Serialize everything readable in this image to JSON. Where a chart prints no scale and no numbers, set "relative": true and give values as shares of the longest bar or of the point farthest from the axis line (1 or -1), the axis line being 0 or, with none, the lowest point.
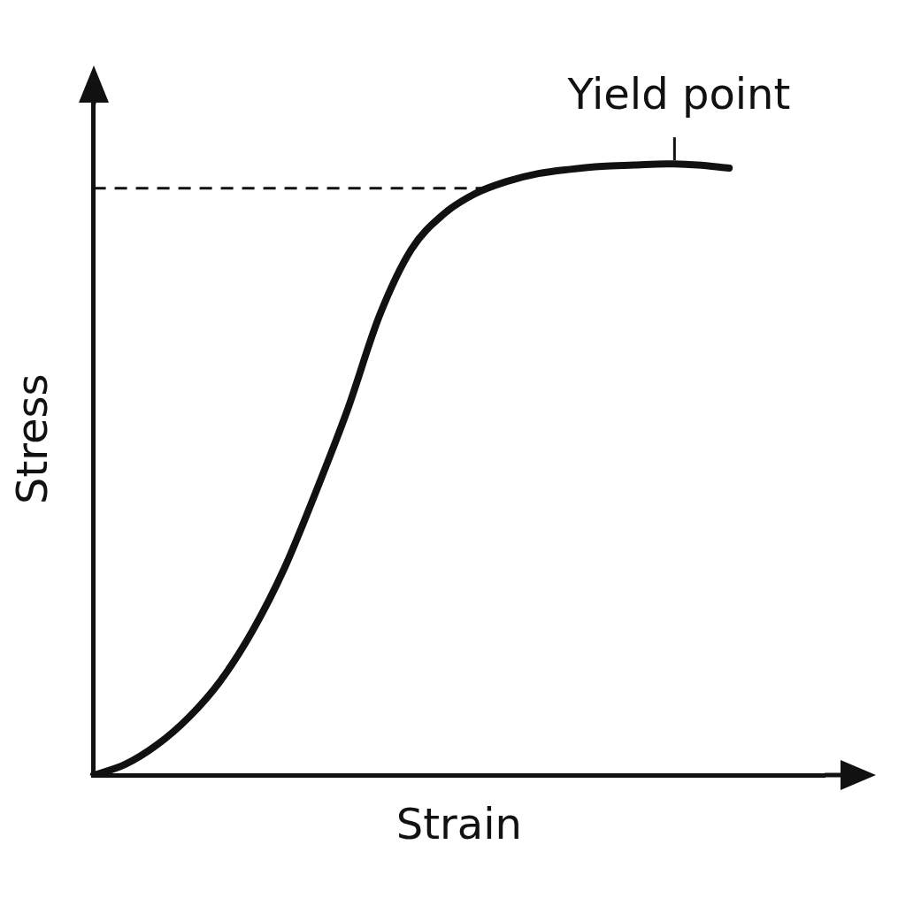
{
  "chart_data": {
    "type": "line",
    "relative": true,
    "xlabel": "Strain",
    "ylabel": "Stress",
    "categories": [
      null,
      null,
      null,
      null,
      null,
      null,
      null,
      null,
      null,
      null,
      null,
      null,
      null,
      null,
      null,
      null,
      null,
      null,
      null,
      null,
      null,
      null,
      null,
      null
    ],
    "series": [
      {
        "color": "#111111",
        "values": [
          0,
          0.018,
          0.05,
          0.095,
          0.155,
          0.236,
          0.338,
          0.464,
          0.599,
          0.752,
          0.86,
          0.917,
          0.951,
          0.971,
          0.984,
          0.991,
          0.996,
          0.998,
          1,
          0.998,
          0.993,
          null,
          null,
          null
        ]
      }
    ],
    "ref_lines": [
      {
        "axis": "y",
        "value": 0.96,
        "color": "#111111",
        "line_style": "dashed"
      }
    ],
    "annotations": [
      "Yield point"
    ],
    "grid": false,
    "legend": false,
    "tick_labels": false,
    "marker": "none",
    "line_style": "solid"
  }
}
